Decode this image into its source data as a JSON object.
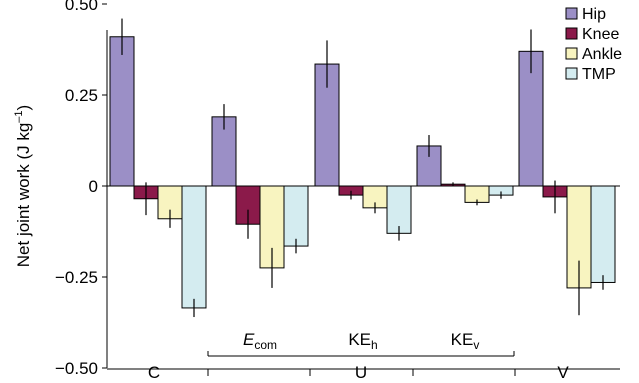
{
  "chart_data": {
    "type": "bar",
    "ylabel": "Net joint work (J kg",
    "ylabel_sup": "–1",
    "ylabel_end": ")",
    "ylim": [
      -0.5,
      0.6
    ],
    "yticks": [
      0.5,
      0.25,
      0,
      -0.25,
      -0.5
    ],
    "ytick_labels": [
      "0.50",
      "0.25",
      "0",
      "−0.25",
      "−0.50"
    ],
    "legend_position": "top-right",
    "groups": [
      {
        "label": "C",
        "base": "",
        "sub": "",
        "italic": false
      },
      {
        "label": "",
        "base": "E",
        "sub": "com",
        "italic": true
      },
      {
        "label": "",
        "base": "KE",
        "sub": "h",
        "italic": false
      },
      {
        "label": "",
        "base": "KE",
        "sub": "v",
        "italic": false
      },
      {
        "label": "V",
        "base": "",
        "sub": "",
        "italic": false
      }
    ],
    "supergroup": {
      "label": "U",
      "spans": [
        1,
        3
      ]
    },
    "series": [
      {
        "name": "Hip",
        "color": "#9b8fc6",
        "values": [
          0.41,
          0.19,
          0.335,
          0.11,
          0.37
        ],
        "errors": [
          0.05,
          0.035,
          0.065,
          0.03,
          0.06
        ]
      },
      {
        "name": "Knee",
        "color": "#8b1a4a",
        "values": [
          -0.035,
          -0.105,
          -0.025,
          0.005,
          -0.03
        ],
        "errors": [
          0.045,
          0.04,
          0.012,
          0.005,
          0.045
        ]
      },
      {
        "name": "Ankle",
        "color": "#f8f4c0",
        "values": [
          -0.09,
          -0.225,
          -0.06,
          -0.045,
          -0.28
        ],
        "errors": [
          0.025,
          0.055,
          0.015,
          0.008,
          0.075
        ]
      },
      {
        "name": "TMP",
        "color": "#d4ecf0",
        "values": [
          -0.335,
          -0.165,
          -0.13,
          -0.025,
          -0.265
        ],
        "errors": [
          0.025,
          0.02,
          0.02,
          0.01,
          0.02
        ]
      }
    ]
  }
}
